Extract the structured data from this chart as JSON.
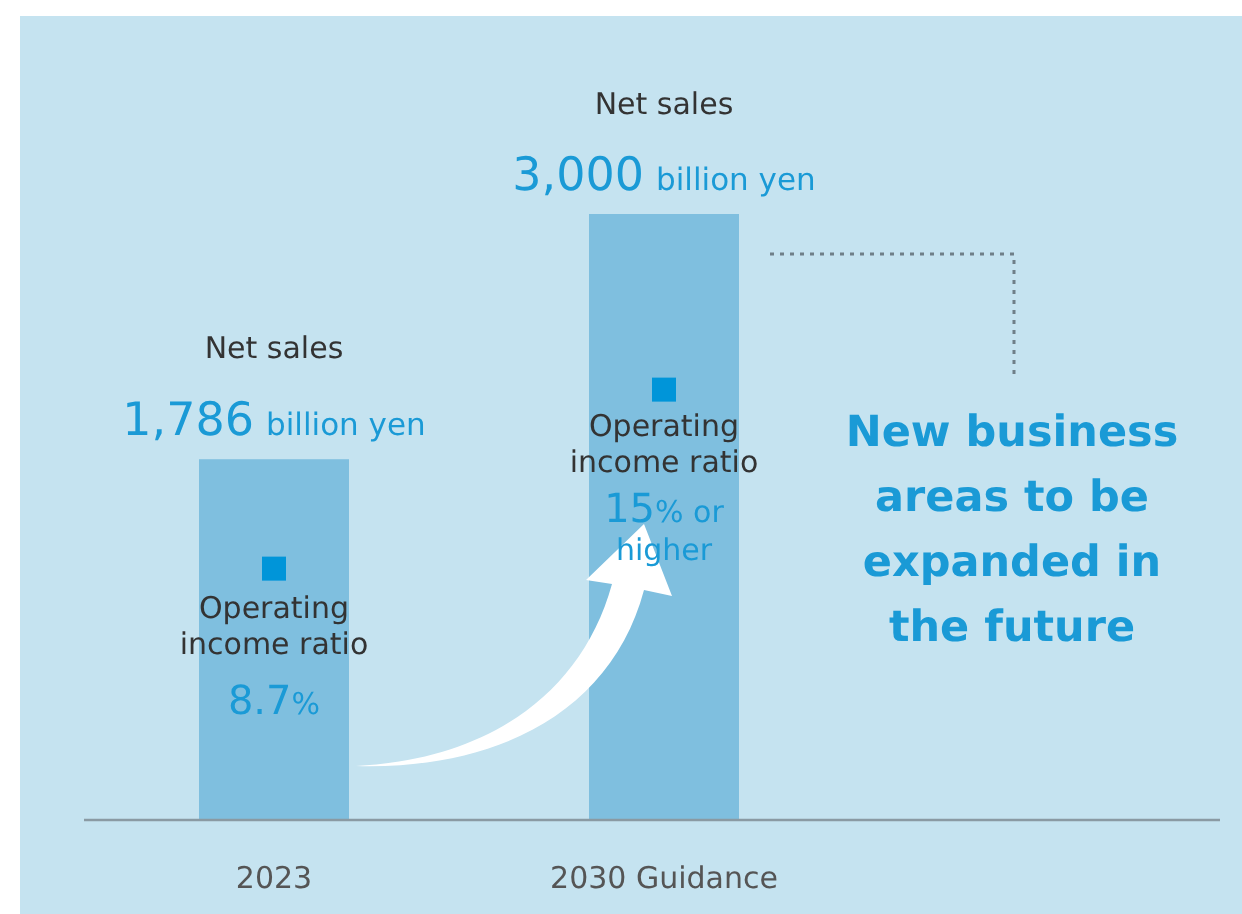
{
  "chart_data": {
    "type": "bar",
    "categories": [
      "2023",
      "2030 Guidance"
    ],
    "values": [
      1786,
      3000
    ],
    "colors": [
      "#7fbfdf",
      "#7fbfdf"
    ],
    "value_labels": [
      "1,786 billion yen",
      "3,000 billion yen"
    ],
    "annotations": [
      "Net sales",
      "Net sales",
      "Operating income ratio",
      "8.7%",
      "Operating income ratio",
      "15% or higher",
      "New business areas to be expanded in the future"
    ]
  }
}
